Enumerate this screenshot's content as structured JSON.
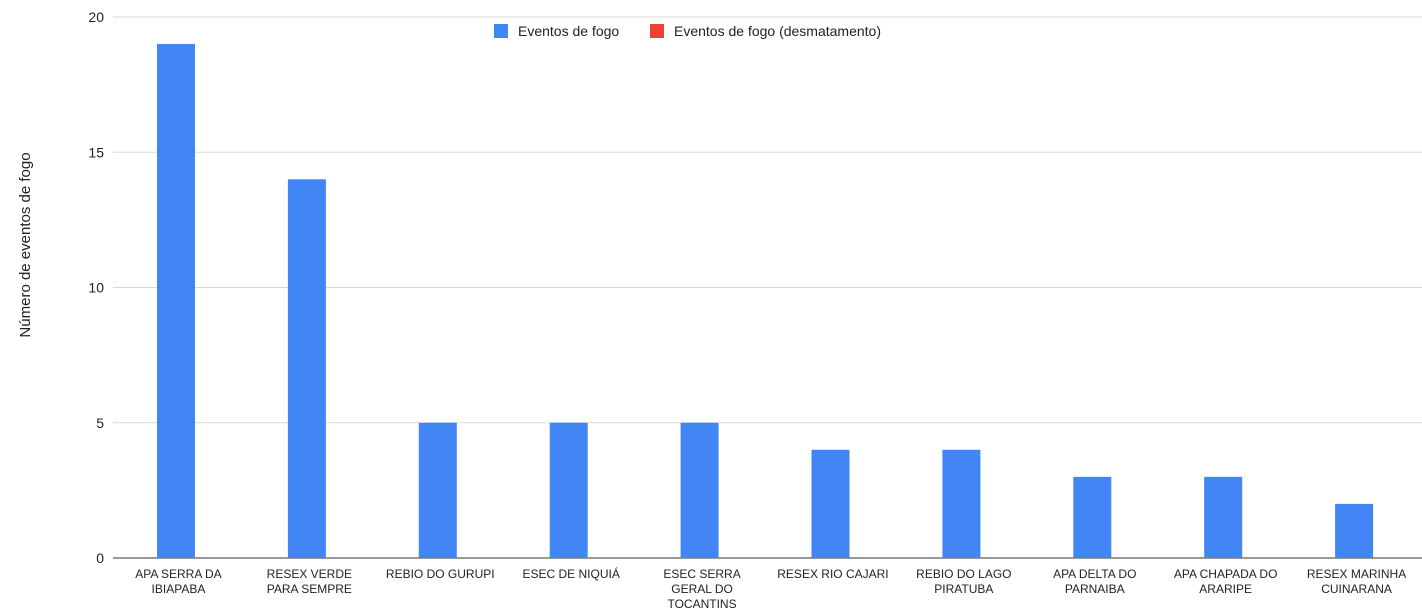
{
  "chart_data": {
    "type": "bar",
    "title": "",
    "xlabel": "",
    "ylabel": "Número de eventos de fogo",
    "ylim": [
      0,
      20
    ],
    "yticks": [
      0,
      5,
      10,
      15,
      20
    ],
    "grid": true,
    "legend_position": "top",
    "categories": [
      [
        "APA SERRA DA",
        "IBIAPABA"
      ],
      [
        "RESEX VERDE",
        "PARA SEMPRE"
      ],
      [
        "REBIO DO GURUPI"
      ],
      [
        "ESEC DE NIQUIÁ"
      ],
      [
        "ESEC SERRA",
        "GERAL DO",
        "TOCANTINS"
      ],
      [
        "RESEX RIO CAJARI"
      ],
      [
        "REBIO DO LAGO",
        "PIRATUBA"
      ],
      [
        "APA DELTA DO",
        "PARNAIBA"
      ],
      [
        "APA CHAPADA DO",
        "ARARIPE"
      ],
      [
        "RESEX MARINHA",
        "CUINARANA"
      ]
    ],
    "series": [
      {
        "name": "Eventos de fogo",
        "color": "#4285f4",
        "values": [
          19,
          14,
          5,
          5,
          5,
          4,
          4,
          3,
          3,
          2
        ]
      },
      {
        "name": "Eventos de fogo (desmatamento)",
        "color": "#ea4335",
        "values": [
          0,
          0,
          0,
          0,
          0,
          0,
          0,
          0,
          0,
          0
        ]
      }
    ]
  },
  "style": {
    "grid_color": "#d9d9d9",
    "axis_color": "#333333"
  }
}
